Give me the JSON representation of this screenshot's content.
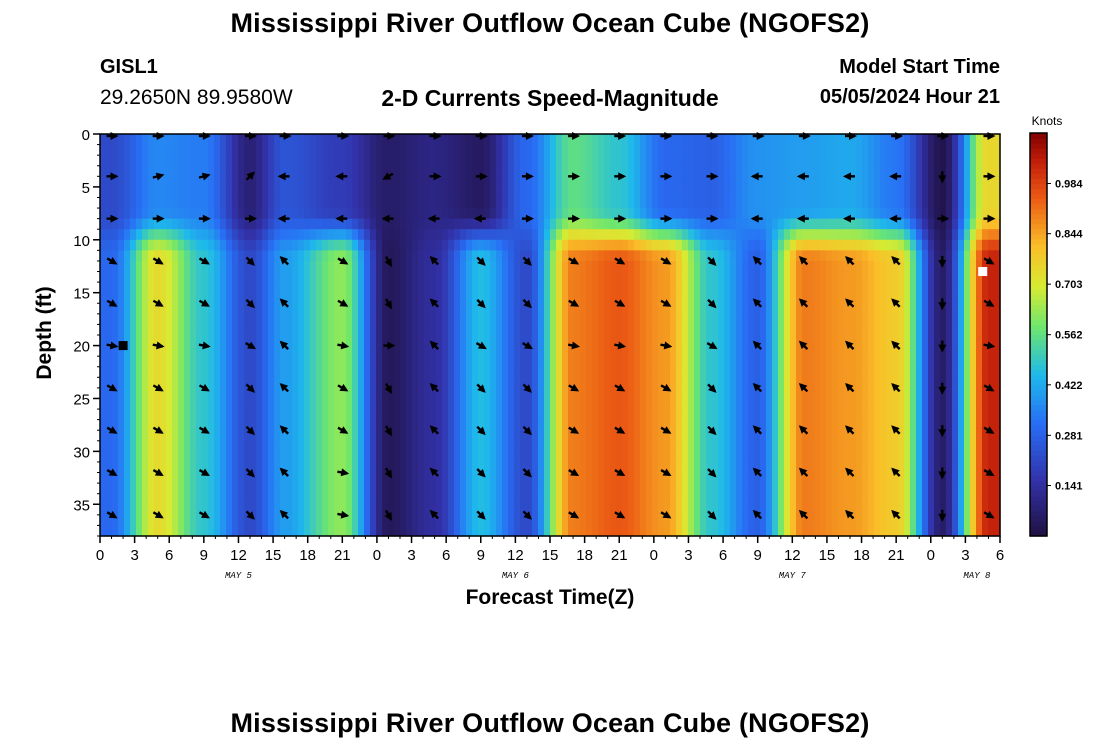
{
  "header": {
    "title": "Mississippi River Outflow Ocean Cube (NGOFS2)",
    "station": "GISL1",
    "coordinates": "29.2650N  89.9580W",
    "subtitle": "2-D Currents Speed-Magnitude",
    "model_start_label": "Model Start Time",
    "model_start_value": "05/05/2024 Hour 21"
  },
  "footer": {
    "title": "Mississippi River Outflow Ocean Cube (NGOFS2)"
  },
  "chart_data": {
    "type": "heatmap",
    "title": "2-D Currents Speed-Magnitude",
    "xlabel": "Forecast Time(Z)",
    "ylabel": "Depth (ft)",
    "x_range_hours": [
      0,
      78
    ],
    "y_range_ft": [
      0,
      38
    ],
    "y_ticks": [
      0,
      5,
      10,
      15,
      20,
      25,
      30,
      35
    ],
    "x_ticks": [
      {
        "h": 0,
        "label": "0"
      },
      {
        "h": 3,
        "label": "3"
      },
      {
        "h": 6,
        "label": "6"
      },
      {
        "h": 9,
        "label": "9"
      },
      {
        "h": 12,
        "label": "12"
      },
      {
        "h": 15,
        "label": "15"
      },
      {
        "h": 18,
        "label": "18"
      },
      {
        "h": 21,
        "label": "21"
      },
      {
        "h": 24,
        "label": "0"
      },
      {
        "h": 27,
        "label": "3"
      },
      {
        "h": 30,
        "label": "6"
      },
      {
        "h": 33,
        "label": "9"
      },
      {
        "h": 36,
        "label": "12"
      },
      {
        "h": 39,
        "label": "15"
      },
      {
        "h": 42,
        "label": "18"
      },
      {
        "h": 45,
        "label": "21"
      },
      {
        "h": 48,
        "label": "0"
      },
      {
        "h": 51,
        "label": "3"
      },
      {
        "h": 54,
        "label": "6"
      },
      {
        "h": 57,
        "label": "9"
      },
      {
        "h": 60,
        "label": "12"
      },
      {
        "h": 63,
        "label": "15"
      },
      {
        "h": 66,
        "label": "18"
      },
      {
        "h": 69,
        "label": "21"
      },
      {
        "h": 72,
        "label": "0"
      },
      {
        "h": 75,
        "label": "3"
      },
      {
        "h": 78,
        "label": "6"
      }
    ],
    "date_labels": [
      {
        "h": 12,
        "label": "MAY 5"
      },
      {
        "h": 36,
        "label": "MAY 6"
      },
      {
        "h": 60,
        "label": "MAY 7"
      },
      {
        "h": 76,
        "label": "MAY 8"
      }
    ],
    "colorbar": {
      "unit": "Knots",
      "min": 0.0,
      "max": 1.125,
      "ticks": [
        0.141,
        0.281,
        0.422,
        0.562,
        0.703,
        0.844,
        0.984
      ]
    },
    "time_hours": [
      1,
      5,
      9,
      13,
      16,
      21,
      25,
      29,
      33,
      37,
      41,
      45,
      49,
      53,
      57,
      61,
      65,
      69,
      73,
      77
    ],
    "depth_ft": [
      0,
      4,
      8,
      12,
      16,
      20,
      24,
      28,
      32,
      36
    ],
    "surface_speed_knots": [
      0.22,
      0.36,
      0.34,
      0.08,
      0.25,
      0.18,
      0.06,
      0.1,
      0.05,
      0.3,
      0.56,
      0.48,
      0.3,
      0.28,
      0.38,
      0.4,
      0.42,
      0.33,
      0.02,
      0.75
    ],
    "deep_speed_knots": [
      0.3,
      0.74,
      0.48,
      0.22,
      0.4,
      0.62,
      0.04,
      0.14,
      0.46,
      0.22,
      0.9,
      0.95,
      0.86,
      0.48,
      0.28,
      0.9,
      0.86,
      0.78,
      0.06,
      1.04
    ],
    "vector_direction_deg": [
      [
        90,
        90,
        90,
        90,
        90,
        90,
        90,
        90,
        90,
        90,
        90,
        90,
        90,
        90,
        90,
        90,
        90,
        90,
        90,
        90
      ],
      [
        90,
        75,
        75,
        45,
        270,
        270,
        240,
        90,
        90,
        90,
        90,
        90,
        90,
        90,
        270,
        270,
        270,
        270,
        180,
        90
      ],
      [
        90,
        90,
        90,
        90,
        270,
        270,
        270,
        270,
        270,
        90,
        90,
        90,
        90,
        90,
        270,
        270,
        270,
        270,
        90,
        90
      ],
      [
        120,
        120,
        120,
        135,
        315,
        120,
        150,
        315,
        135,
        135,
        120,
        120,
        120,
        135,
        315,
        315,
        315,
        315,
        180,
        120
      ],
      [
        120,
        120,
        120,
        135,
        315,
        120,
        150,
        315,
        135,
        135,
        120,
        120,
        120,
        135,
        315,
        315,
        315,
        315,
        180,
        120
      ],
      [
        100,
        100,
        100,
        120,
        315,
        100,
        90,
        315,
        120,
        120,
        100,
        100,
        100,
        120,
        315,
        315,
        315,
        315,
        180,
        100
      ],
      [
        120,
        120,
        120,
        135,
        315,
        120,
        150,
        315,
        135,
        135,
        120,
        120,
        120,
        135,
        315,
        315,
        315,
        315,
        180,
        120
      ],
      [
        120,
        120,
        120,
        135,
        315,
        120,
        150,
        315,
        135,
        135,
        120,
        120,
        120,
        135,
        315,
        315,
        315,
        315,
        180,
        120
      ],
      [
        120,
        120,
        120,
        135,
        315,
        100,
        150,
        315,
        135,
        135,
        120,
        120,
        120,
        135,
        315,
        315,
        315,
        315,
        180,
        120
      ],
      [
        120,
        120,
        120,
        135,
        315,
        100,
        150,
        315,
        135,
        135,
        120,
        120,
        120,
        135,
        315,
        315,
        315,
        315,
        180,
        120
      ]
    ],
    "markers": [
      {
        "h": 2,
        "depth": 20,
        "color": "#000000"
      },
      {
        "h": 76.5,
        "depth": 13,
        "color": "#ffffff"
      }
    ]
  }
}
